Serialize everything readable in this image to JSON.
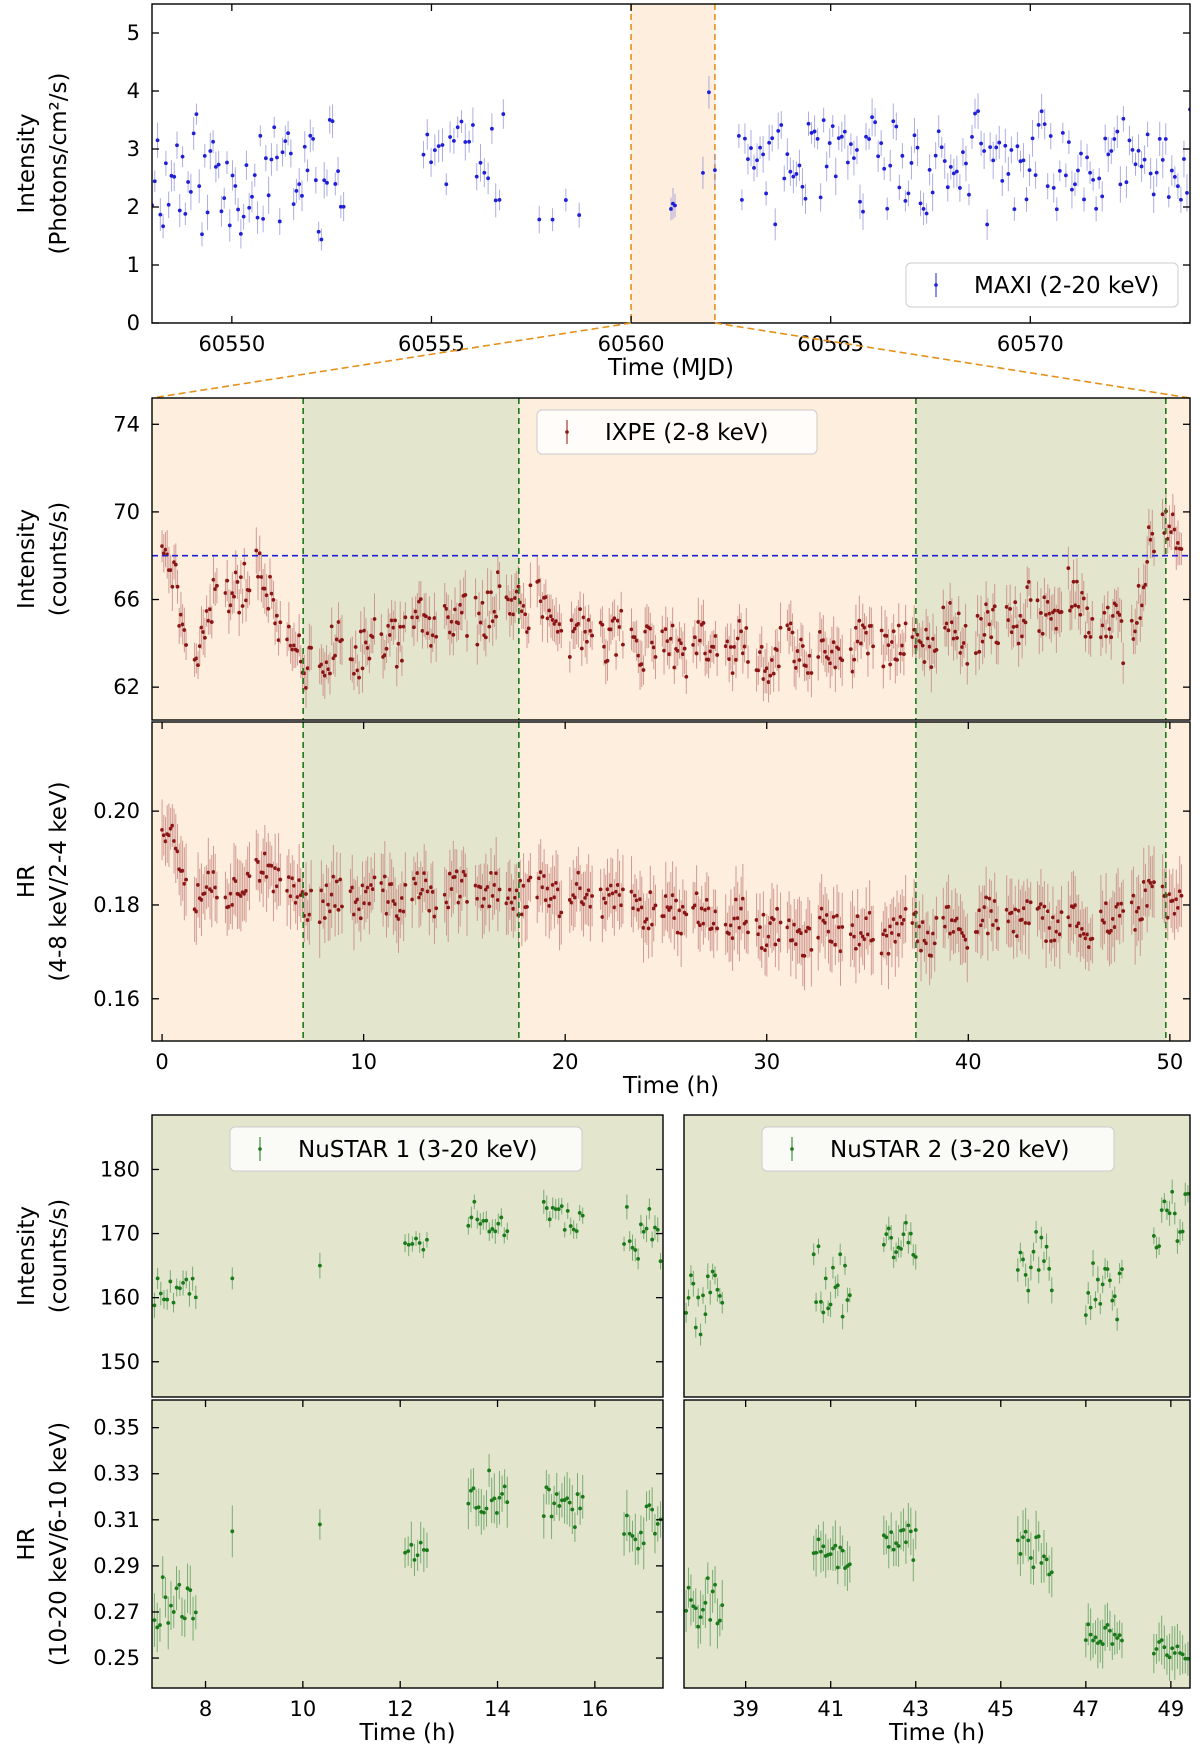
{
  "chart_data": [
    {
      "id": "maxi",
      "type": "scatter",
      "xlabel": "Time (MJD)",
      "ylabel": [
        "Intensity",
        "(Photons/cm²/s)"
      ],
      "xlim": [
        60548.0,
        60574.0
      ],
      "ylim": [
        0,
        5.5
      ],
      "xticks": [
        60550,
        60555,
        60560,
        60565,
        60570
      ],
      "yticks": [
        0,
        1,
        2,
        3,
        4,
        5
      ],
      "legend": "MAXI (2-20 keV)",
      "legend_position": "lower-right",
      "color": "#1f1fd6",
      "highlight_span": [
        60560.0,
        60562.1
      ],
      "clusters": [
        {
          "x": [
            60548.0,
            60552.8
          ],
          "n": 70,
          "base": 2.5,
          "amp": 0.9
        },
        {
          "x": [
            60554.8,
            60556.8
          ],
          "n": 22,
          "base": 2.9,
          "amp": 0.7
        },
        {
          "x": [
            60557.7,
            60558.7
          ],
          "n": 4,
          "base": 2.0,
          "amp": 0.3
        },
        {
          "x": [
            60561.0,
            60561.1
          ],
          "n": 3,
          "base": 2.0,
          "amp": 0.1
        },
        {
          "x": [
            60561.8,
            60562.1
          ],
          "n": 3,
          "base": 2.9,
          "amp": 0.9
        },
        {
          "x": [
            60562.7,
            60574.0
          ],
          "n": 150,
          "base": 2.7,
          "amp": 0.8
        }
      ]
    },
    {
      "id": "ixpe-intensity",
      "type": "scatter",
      "xlabel": "",
      "ylabel": [
        "Intensity",
        "(counts/s)"
      ],
      "xlim": [
        -0.5,
        51.0
      ],
      "ylim": [
        60.5,
        75.2
      ],
      "yticks": [
        62,
        66,
        70,
        74
      ],
      "legend": "IXPE (2-8 keV)",
      "legend_position": "top-center",
      "color": "#8b1414",
      "reference_level": 68.0,
      "shaded_intervals": [
        [
          7.0,
          17.7
        ],
        [
          37.4,
          49.8
        ]
      ],
      "gap_starts": [
        1.3,
        6.1,
        8.5,
        12.7,
        18.7,
        24.3,
        30.4,
        36.2,
        42.3,
        48.1
      ],
      "trend": [
        [
          0,
          69
        ],
        [
          1.5,
          63
        ],
        [
          3,
          66.5
        ],
        [
          5,
          67
        ],
        [
          7,
          63
        ],
        [
          10,
          64
        ],
        [
          14,
          65
        ],
        [
          17.7,
          66
        ],
        [
          20,
          64.5
        ],
        [
          25,
          64
        ],
        [
          30,
          63.6
        ],
        [
          37.4,
          64
        ],
        [
          42,
          65
        ],
        [
          45,
          66
        ],
        [
          48,
          64
        ],
        [
          49.5,
          70
        ],
        [
          50.5,
          69
        ]
      ]
    },
    {
      "id": "ixpe-hr",
      "type": "scatter",
      "xlabel": "Time (h)",
      "ylabel": [
        "HR",
        "(4-8 keV/2-4 keV)"
      ],
      "xlim": [
        -0.5,
        51.0
      ],
      "ylim": [
        0.151,
        0.219
      ],
      "xticks": [
        0,
        10,
        20,
        30,
        40,
        50
      ],
      "yticks": [
        0.16,
        0.18,
        0.2
      ],
      "color": "#8b1414",
      "shaded_intervals": [
        [
          7.0,
          17.7
        ],
        [
          37.4,
          49.8
        ]
      ],
      "trend": [
        [
          0,
          0.198
        ],
        [
          1.5,
          0.184
        ],
        [
          3,
          0.183
        ],
        [
          5,
          0.188
        ],
        [
          7,
          0.181
        ],
        [
          12,
          0.182
        ],
        [
          17.7,
          0.183
        ],
        [
          22,
          0.181
        ],
        [
          27,
          0.178
        ],
        [
          32,
          0.174
        ],
        [
          37.4,
          0.174
        ],
        [
          42,
          0.177
        ],
        [
          47,
          0.176
        ],
        [
          49,
          0.182
        ],
        [
          50.5,
          0.18
        ]
      ]
    },
    {
      "id": "nustar1-intensity",
      "type": "scatter",
      "xlabel": "",
      "ylabel": [
        "Intensity",
        "(counts/s)"
      ],
      "xlim": [
        6.9,
        17.4
      ],
      "ylim": [
        144.5,
        188.5
      ],
      "yticks": [
        150,
        160,
        170,
        180
      ],
      "legend": "NuSTAR 1 (3-20 keV)",
      "legend_position": "top-center",
      "color": "#1a7a1a",
      "clusters": [
        {
          "x": [
            6.95,
            7.8
          ],
          "n": 14,
          "base": 160.5,
          "amp": 3.5
        },
        {
          "x": [
            8.55,
            8.55
          ],
          "n": 1,
          "base": 163,
          "amp": 0
        },
        {
          "x": [
            10.35,
            10.35
          ],
          "n": 1,
          "base": 165,
          "amp": 0
        },
        {
          "x": [
            12.1,
            12.55
          ],
          "n": 7,
          "base": 168.5,
          "amp": 1
        },
        {
          "x": [
            13.4,
            14.2
          ],
          "n": 14,
          "base": 172,
          "amp": 2.5
        },
        {
          "x": [
            14.95,
            15.75
          ],
          "n": 14,
          "base": 172.5,
          "amp": 2.5
        },
        {
          "x": [
            16.6,
            17.35
          ],
          "n": 14,
          "base": 168,
          "amp": 5
        }
      ]
    },
    {
      "id": "nustar2-intensity",
      "type": "scatter",
      "xlabel": "",
      "ylabel": [],
      "xlim": [
        37.55,
        49.45
      ],
      "ylim": [
        144.5,
        188.5
      ],
      "legend": "NuSTAR 2 (3-20 keV)",
      "legend_position": "top-center",
      "color": "#1a7a1a",
      "clusters": [
        {
          "x": [
            37.6,
            38.45
          ],
          "n": 16,
          "base": 160,
          "amp": 5
        },
        {
          "x": [
            40.6,
            41.45
          ],
          "n": 16,
          "base": 163,
          "amp": 5
        },
        {
          "x": [
            42.25,
            43.0
          ],
          "n": 14,
          "base": 168,
          "amp": 3
        },
        {
          "x": [
            45.4,
            46.2
          ],
          "n": 14,
          "base": 166,
          "amp": 5
        },
        {
          "x": [
            47.0,
            47.85
          ],
          "n": 16,
          "base": 161,
          "amp": 4
        },
        {
          "x": [
            48.6,
            49.4
          ],
          "n": 14,
          "base": 172,
          "amp": 6
        }
      ]
    },
    {
      "id": "nustar1-hr",
      "type": "scatter",
      "xlabel": "Time (h)",
      "ylabel": [
        "HR",
        "(10-20 keV/6-10 keV)"
      ],
      "xlim": [
        6.9,
        17.4
      ],
      "ylim": [
        0.237,
        0.362
      ],
      "xticks": [
        8,
        10,
        12,
        14,
        16
      ],
      "yticks": [
        0.25,
        0.27,
        0.29,
        0.31,
        0.33,
        0.35
      ],
      "color": "#1a7a1a",
      "clusters": [
        {
          "x": [
            6.95,
            7.8
          ],
          "n": 16,
          "base": 0.272,
          "amp": 0.012
        },
        {
          "x": [
            8.55,
            8.55
          ],
          "n": 1,
          "base": 0.305,
          "amp": 0
        },
        {
          "x": [
            10.35,
            10.35
          ],
          "n": 1,
          "base": 0.308,
          "amp": 0
        },
        {
          "x": [
            12.1,
            12.55
          ],
          "n": 8,
          "base": 0.297,
          "amp": 0.008
        },
        {
          "x": [
            13.4,
            14.2
          ],
          "n": 16,
          "base": 0.322,
          "amp": 0.008
        },
        {
          "x": [
            14.95,
            15.75
          ],
          "n": 16,
          "base": 0.317,
          "amp": 0.008
        },
        {
          "x": [
            16.6,
            17.35
          ],
          "n": 14,
          "base": 0.308,
          "amp": 0.009
        }
      ]
    },
    {
      "id": "nustar2-hr",
      "type": "scatter",
      "xlabel": "Time (h)",
      "ylabel": [],
      "xlim": [
        37.55,
        49.45
      ],
      "ylim": [
        0.237,
        0.362
      ],
      "xticks": [
        39,
        41,
        43,
        45,
        47,
        49
      ],
      "color": "#1a7a1a",
      "clusters": [
        {
          "x": [
            37.6,
            38.45
          ],
          "n": 16,
          "base": 0.275,
          "amp": 0.01
        },
        {
          "x": [
            40.6,
            41.45
          ],
          "n": 16,
          "base": 0.294,
          "amp": 0.006
        },
        {
          "x": [
            42.25,
            43.0
          ],
          "n": 14,
          "base": 0.302,
          "amp": 0.008
        },
        {
          "x": [
            45.4,
            46.2
          ],
          "n": 14,
          "base": 0.296,
          "amp": 0.008
        },
        {
          "x": [
            47.0,
            47.85
          ],
          "n": 16,
          "base": 0.26,
          "amp": 0.004
        },
        {
          "x": [
            48.6,
            49.4
          ],
          "n": 14,
          "base": 0.255,
          "amp": 0.005
        }
      ]
    }
  ]
}
